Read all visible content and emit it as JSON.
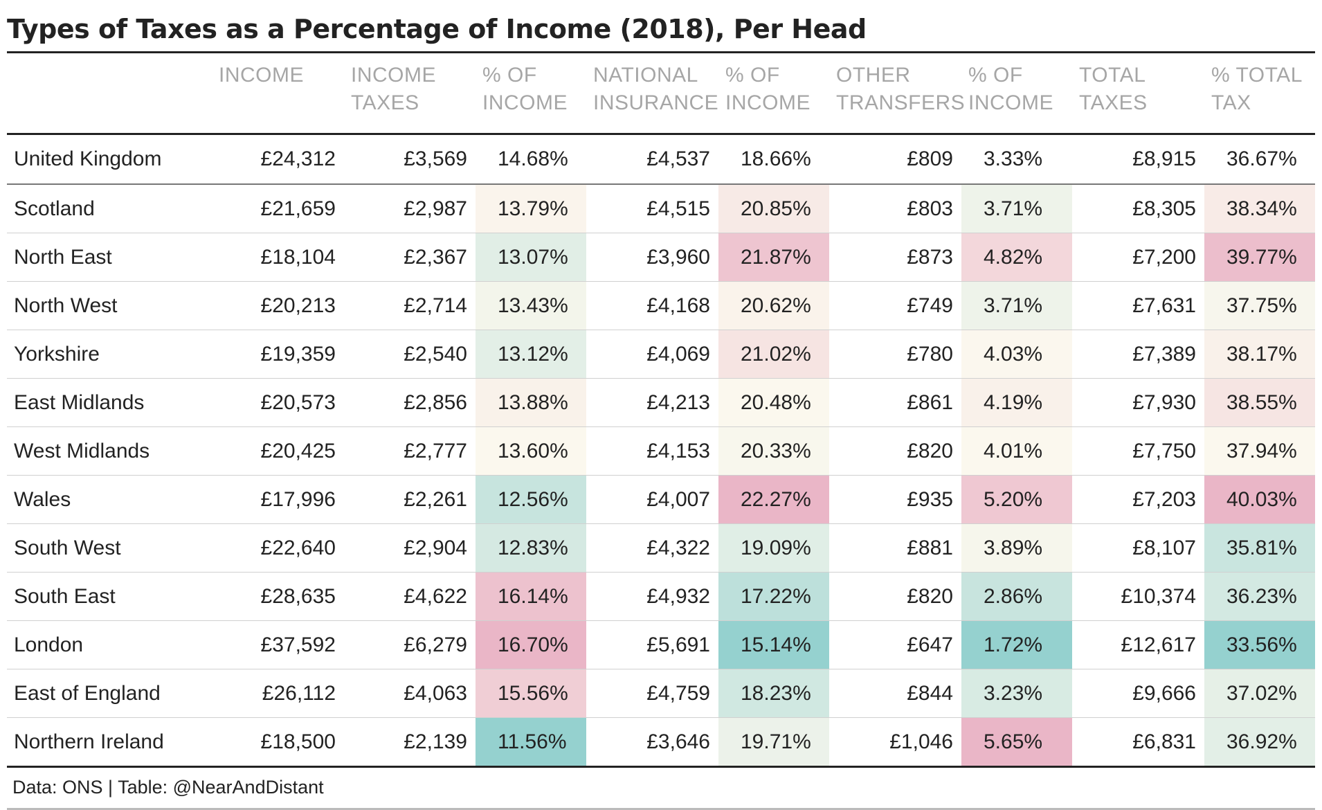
{
  "chart_data": {
    "type": "table",
    "title": "Types of Taxes as a Percentage of Income (2018), Per Head",
    "columns": [
      {
        "key": "region",
        "label": "",
        "kind": "label"
      },
      {
        "key": "income",
        "label": "INCOME",
        "kind": "num"
      },
      {
        "key": "income_taxes",
        "label": "INCOME TAXES",
        "kind": "num"
      },
      {
        "key": "income_taxes_pct",
        "label": "% OF INCOME",
        "kind": "pct"
      },
      {
        "key": "national_insurance",
        "label": "NATIONAL INSURANCE",
        "kind": "num"
      },
      {
        "key": "national_insurance_pct",
        "label": "% OF INCOME",
        "kind": "pct"
      },
      {
        "key": "other_transfers",
        "label": "OTHER TRANSFERS",
        "kind": "num"
      },
      {
        "key": "other_transfers_pct",
        "label": "% OF INCOME",
        "kind": "pct"
      },
      {
        "key": "total_taxes",
        "label": "TOTAL TAXES",
        "kind": "num"
      },
      {
        "key": "total_tax_pct",
        "label": "% TOTAL TAX",
        "kind": "pct"
      }
    ],
    "rows": [
      {
        "region": "United Kingdom",
        "income": "£24,312",
        "income_taxes": "£3,569",
        "income_taxes_pct": "14.68%",
        "national_insurance": "£4,537",
        "national_insurance_pct": "18.66%",
        "other_transfers": "£809",
        "other_transfers_pct": "3.33%",
        "total_taxes": "£8,915",
        "total_tax_pct": "36.67%",
        "is_total": true
      },
      {
        "region": "Scotland",
        "income": "£21,659",
        "income_taxes": "£2,987",
        "income_taxes_pct": "13.79%",
        "national_insurance": "£4,515",
        "national_insurance_pct": "20.85%",
        "other_transfers": "£803",
        "other_transfers_pct": "3.71%",
        "total_taxes": "£8,305",
        "total_tax_pct": "38.34%"
      },
      {
        "region": "North East",
        "income": "£18,104",
        "income_taxes": "£2,367",
        "income_taxes_pct": "13.07%",
        "national_insurance": "£3,960",
        "national_insurance_pct": "21.87%",
        "other_transfers": "£873",
        "other_transfers_pct": "4.82%",
        "total_taxes": "£7,200",
        "total_tax_pct": "39.77%"
      },
      {
        "region": "North West",
        "income": "£20,213",
        "income_taxes": "£2,714",
        "income_taxes_pct": "13.43%",
        "national_insurance": "£4,168",
        "national_insurance_pct": "20.62%",
        "other_transfers": "£749",
        "other_transfers_pct": "3.71%",
        "total_taxes": "£7,631",
        "total_tax_pct": "37.75%"
      },
      {
        "region": "Yorkshire",
        "income": "£19,359",
        "income_taxes": "£2,540",
        "income_taxes_pct": "13.12%",
        "national_insurance": "£4,069",
        "national_insurance_pct": "21.02%",
        "other_transfers": "£780",
        "other_transfers_pct": "4.03%",
        "total_taxes": "£7,389",
        "total_tax_pct": "38.17%"
      },
      {
        "region": "East Midlands",
        "income": "£20,573",
        "income_taxes": "£2,856",
        "income_taxes_pct": "13.88%",
        "national_insurance": "£4,213",
        "national_insurance_pct": "20.48%",
        "other_transfers": "£861",
        "other_transfers_pct": "4.19%",
        "total_taxes": "£7,930",
        "total_tax_pct": "38.55%"
      },
      {
        "region": "West Midlands",
        "income": "£20,425",
        "income_taxes": "£2,777",
        "income_taxes_pct": "13.60%",
        "national_insurance": "£4,153",
        "national_insurance_pct": "20.33%",
        "other_transfers": "£820",
        "other_transfers_pct": "4.01%",
        "total_taxes": "£7,750",
        "total_tax_pct": "37.94%"
      },
      {
        "region": "Wales",
        "income": "£17,996",
        "income_taxes": "£2,261",
        "income_taxes_pct": "12.56%",
        "national_insurance": "£4,007",
        "national_insurance_pct": "22.27%",
        "other_transfers": "£935",
        "other_transfers_pct": "5.20%",
        "total_taxes": "£7,203",
        "total_tax_pct": "40.03%"
      },
      {
        "region": "South West",
        "income": "£22,640",
        "income_taxes": "£2,904",
        "income_taxes_pct": "12.83%",
        "national_insurance": "£4,322",
        "national_insurance_pct": "19.09%",
        "other_transfers": "£881",
        "other_transfers_pct": "3.89%",
        "total_taxes": "£8,107",
        "total_tax_pct": "35.81%"
      },
      {
        "region": "South East",
        "income": "£28,635",
        "income_taxes": "£4,622",
        "income_taxes_pct": "16.14%",
        "national_insurance": "£4,932",
        "national_insurance_pct": "17.22%",
        "other_transfers": "£820",
        "other_transfers_pct": "2.86%",
        "total_taxes": "£10,374",
        "total_tax_pct": "36.23%"
      },
      {
        "region": "London",
        "income": "£37,592",
        "income_taxes": "£6,279",
        "income_taxes_pct": "16.70%",
        "national_insurance": "£5,691",
        "national_insurance_pct": "15.14%",
        "other_transfers": "£647",
        "other_transfers_pct": "1.72%",
        "total_taxes": "£12,617",
        "total_tax_pct": "33.56%"
      },
      {
        "region": "East of England",
        "income": "£26,112",
        "income_taxes": "£4,063",
        "income_taxes_pct": "15.56%",
        "national_insurance": "£4,759",
        "national_insurance_pct": "18.23%",
        "other_transfers": "£844",
        "other_transfers_pct": "3.23%",
        "total_taxes": "£9,666",
        "total_tax_pct": "37.02%"
      },
      {
        "region": "Northern Ireland",
        "income": "£18,500",
        "income_taxes": "£2,139",
        "income_taxes_pct": "11.56%",
        "national_insurance": "£3,646",
        "national_insurance_pct": "19.71%",
        "other_transfers": "£1,046",
        "other_transfers_pct": "5.65%",
        "total_taxes": "£6,831",
        "total_tax_pct": "36.92%"
      }
    ],
    "color_scale": {
      "low": "#95d1cf",
      "mid": "#fbf8ee",
      "high": "#eab6c7"
    }
  },
  "footer": {
    "source": "Data: ONS | Table: @NearAndDistant"
  }
}
